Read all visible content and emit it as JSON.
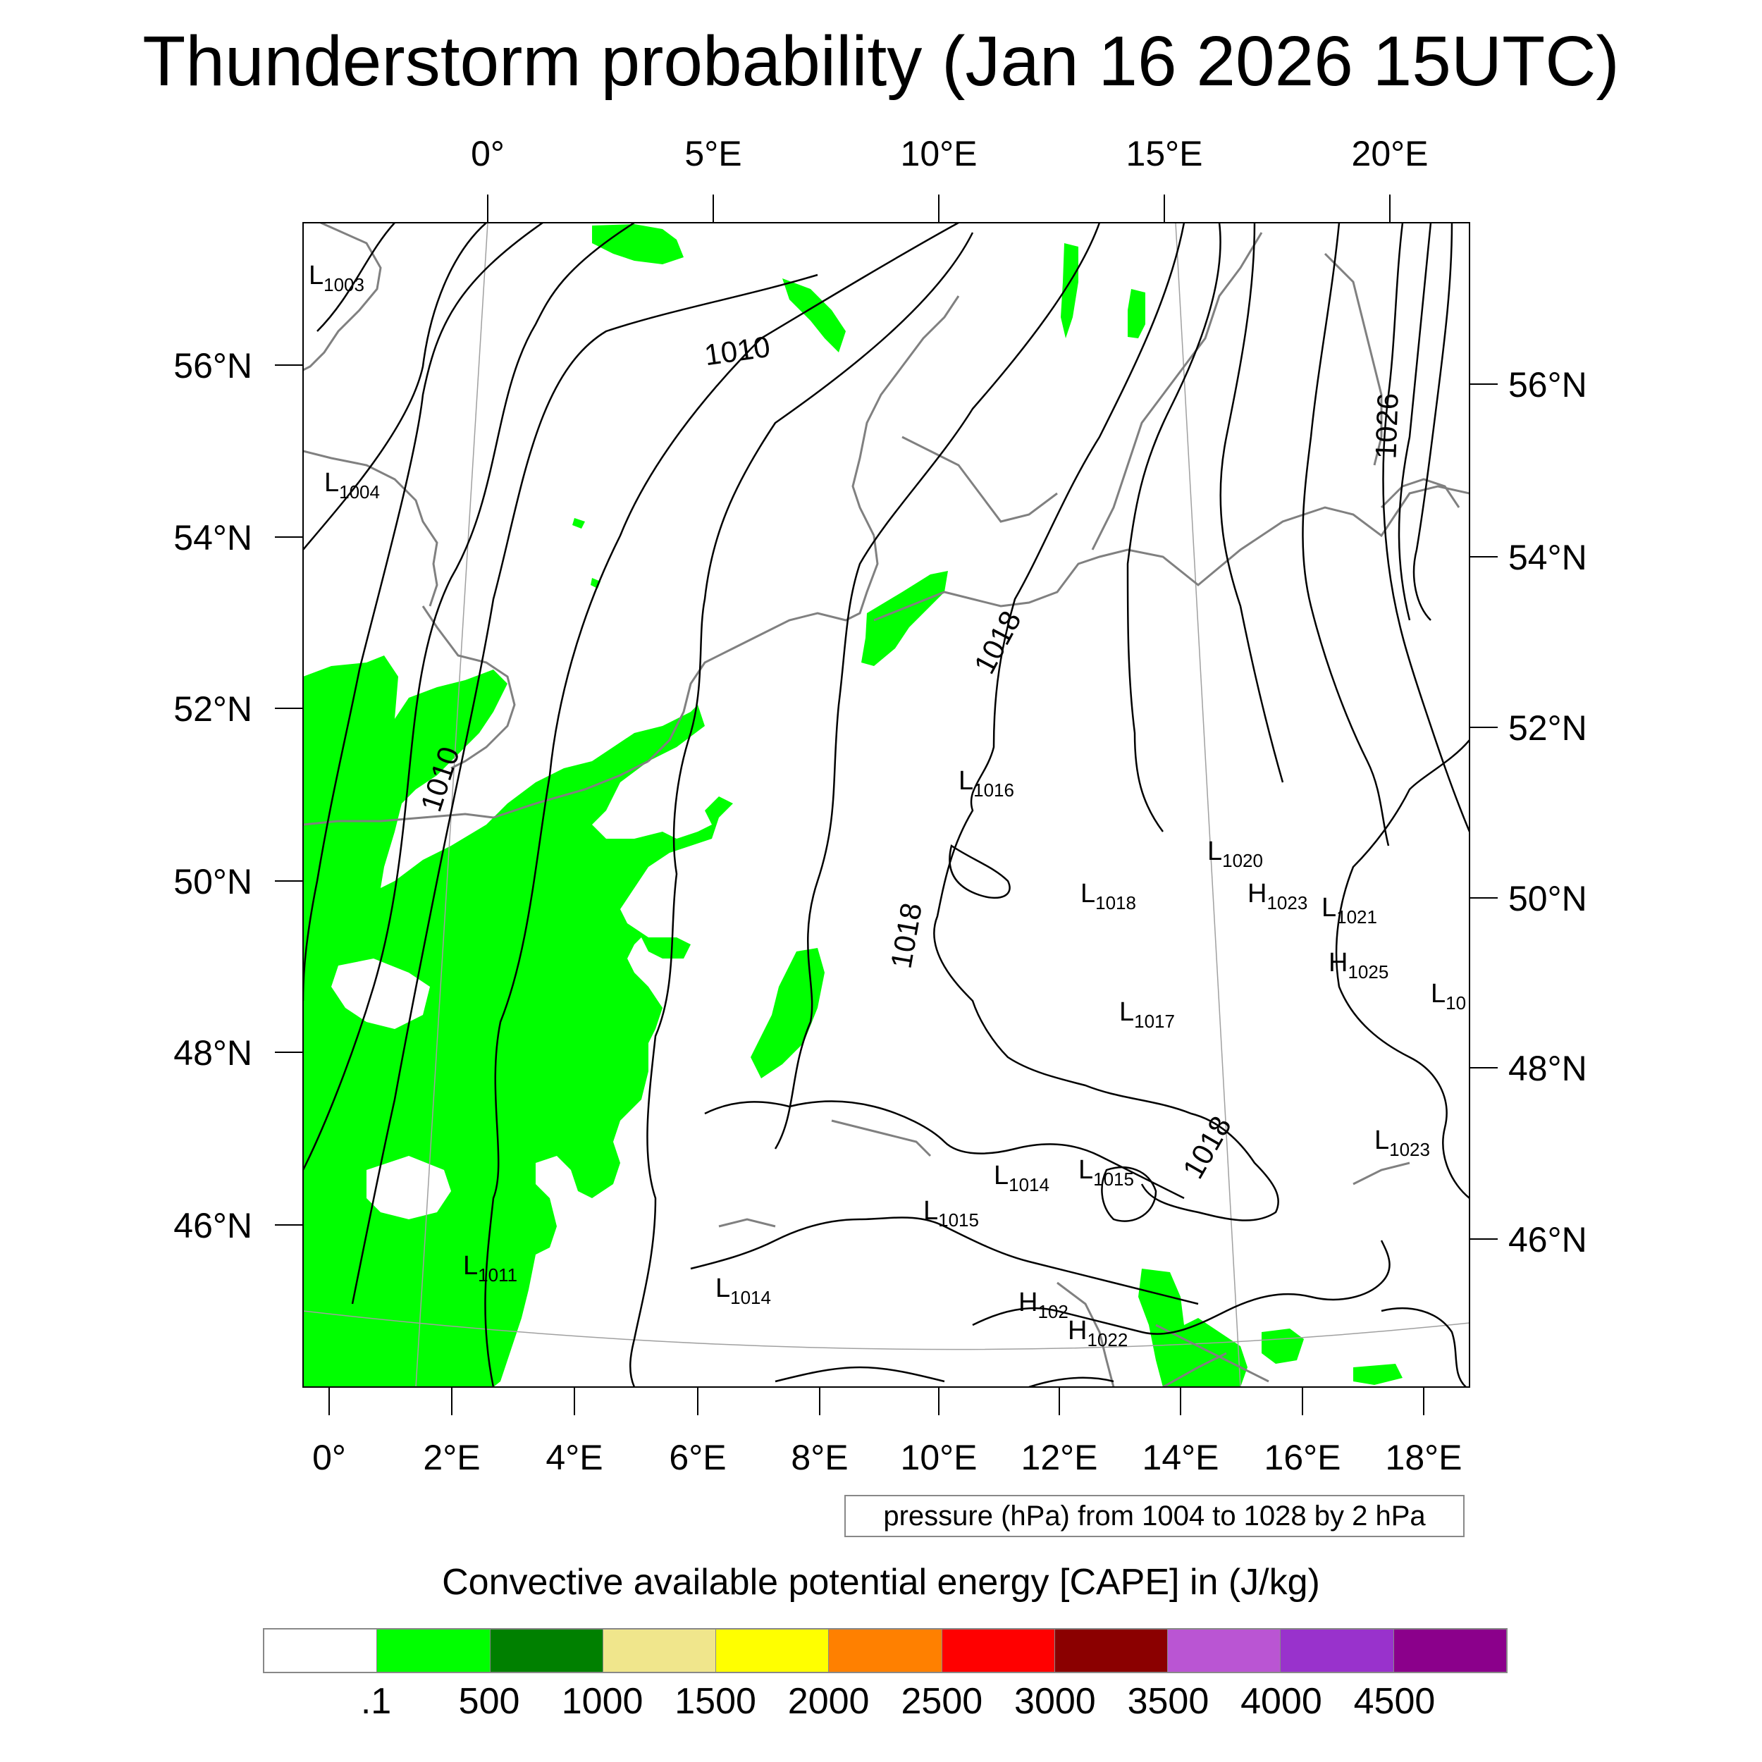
{
  "title": "Thunderstorm probability (Jan 16 2026 15UTC)",
  "top_lon_labels": [
    "0°",
    "5°E",
    "10°E",
    "15°E",
    "20°E"
  ],
  "bottom_lon_labels": [
    "0°",
    "2°E",
    "4°E",
    "6°E",
    "8°E",
    "10°E",
    "12°E",
    "14°E",
    "16°E",
    "18°E"
  ],
  "left_lat_labels": [
    "56°N",
    "54°N",
    "52°N",
    "50°N",
    "48°N",
    "46°N"
  ],
  "right_lat_labels": [
    "56°N",
    "54°N",
    "52°N",
    "50°N",
    "48°N",
    "46°N"
  ],
  "isobar_labels": [
    "1010",
    "1010",
    "1018",
    "1018",
    "1018",
    "1026"
  ],
  "pressure_centers": [
    {
      "type": "L",
      "value": "1003"
    },
    {
      "type": "L",
      "value": "1004"
    },
    {
      "type": "L",
      "value": "1016"
    },
    {
      "type": "L",
      "value": "1020"
    },
    {
      "type": "L",
      "value": "1018"
    },
    {
      "type": "H",
      "value": "1023"
    },
    {
      "type": "L",
      "value": "1021"
    },
    {
      "type": "H",
      "value": "1025"
    },
    {
      "type": "L",
      "value": "1017"
    },
    {
      "type": "L",
      "value": "10"
    },
    {
      "type": "L",
      "value": "1023"
    },
    {
      "type": "L",
      "value": "1014"
    },
    {
      "type": "L",
      "value": "1015"
    },
    {
      "type": "L",
      "value": "1015"
    },
    {
      "type": "L",
      "value": "1011"
    },
    {
      "type": "L",
      "value": "1014"
    },
    {
      "type": "H",
      "value": "102"
    },
    {
      "type": "H",
      "value": "1022"
    }
  ],
  "contour_note": "pressure (hPa) from 1004 to 1028 by 2 hPa",
  "cape_title": "Convective available potential energy [CAPE] in (J/kg)",
  "colorbar": {
    "colors": [
      "#ffffff",
      "#00ff00",
      "#008000",
      "#f0e68c",
      "#ffff00",
      "#ff8000",
      "#ff0000",
      "#8b0000",
      "#ba55d3",
      "#9932cc",
      "#8b008b"
    ],
    "labels": [
      ".1",
      "500",
      "1000",
      "1500",
      "2000",
      "2500",
      "3000",
      "3500",
      "4000",
      "4500"
    ]
  },
  "colors": {
    "cape_fill": "#00ff00",
    "isobar": "#000000",
    "coastline": "#808080",
    "graticule": "#a0a0a0"
  }
}
